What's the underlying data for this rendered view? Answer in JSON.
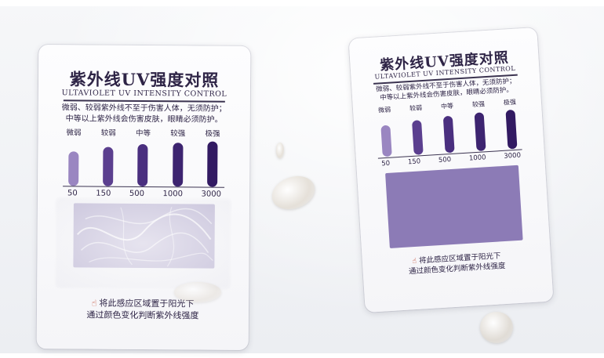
{
  "cards": [
    {
      "title": "紫外线UV强度对照",
      "subtitle": "ULTAVIOLET UV INTENSITY CONTROL",
      "note_line1": "微弱、较弱紫外线不至于伤害人体，无须防护；",
      "note_line2": "中等以上紫外线会伤害皮肤，眼睛必须防护。",
      "levels": [
        {
          "label": "微弱",
          "value": "50",
          "color": "#9a86c1"
        },
        {
          "label": "较弱",
          "value": "150",
          "color": "#5b3f8f"
        },
        {
          "label": "中等",
          "value": "500",
          "color": "#4a2f7f"
        },
        {
          "label": "较强",
          "value": "1000",
          "color": "#3d2470"
        },
        {
          "label": "极强",
          "value": "3000",
          "color": "#321a62"
        }
      ],
      "sensor_color": "#c9c3dc",
      "instruction_line1": "将此感应区域置于阳光下",
      "instruction_line2": "通过颜色变化判断紫外线强度",
      "hand_icon": "pointing-hand-icon"
    },
    {
      "title": "紫外线UV强度对照",
      "subtitle": "ULTAVIOLET UV INTENSITY CONTROL",
      "note_line1": "微弱、较弱紫外线不至于伤害人体，无须防护；",
      "note_line2": "中等以上紫外线会伤害皮肤，眼睛必须防护。",
      "levels": [
        {
          "label": "微弱",
          "value": "50",
          "color": "#9a86c1"
        },
        {
          "label": "较弱",
          "value": "150",
          "color": "#5b3f8f"
        },
        {
          "label": "中等",
          "value": "500",
          "color": "#4a2f7f"
        },
        {
          "label": "较强",
          "value": "1000",
          "color": "#3d2470"
        },
        {
          "label": "极强",
          "value": "3000",
          "color": "#321a62"
        }
      ],
      "sensor_color": "#8c7bb6",
      "instruction_line1": "将此感应区域置于阳光下",
      "instruction_line2": "通过颜色变化判断紫外线强度",
      "hand_icon": "pointing-hand-icon"
    }
  ]
}
